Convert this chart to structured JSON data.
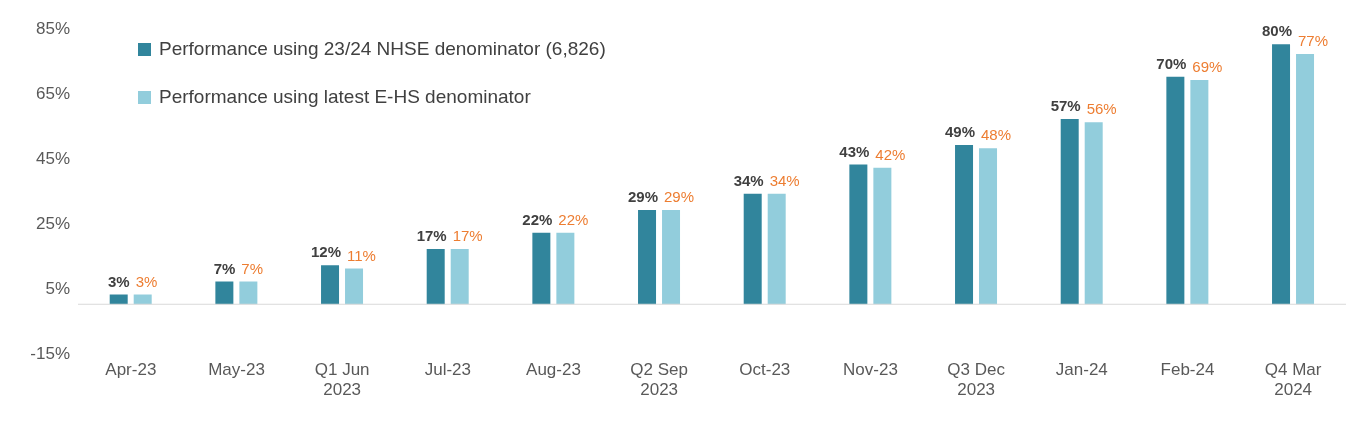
{
  "chart_data": {
    "type": "bar",
    "categories": [
      "Apr-23",
      "May-23",
      "Q1 Jun\n2023",
      "Jul-23",
      "Aug-23",
      "Q2 Sep\n2023",
      "Oct-23",
      "Nov-23",
      "Q3 Dec\n2023",
      "Jan-24",
      "Feb-24",
      "Q4 Mar\n2024"
    ],
    "series": [
      {
        "name": "Performance using 23/24 NHSE denominator (6,826)",
        "color": "#31859c",
        "values": [
          3,
          7,
          12,
          17,
          22,
          29,
          34,
          43,
          49,
          57,
          70,
          80
        ],
        "value_labels": [
          "3%",
          "7%",
          "12%",
          "17%",
          "22%",
          "29%",
          "34%",
          "43%",
          "49%",
          "57%",
          "70%",
          "80%"
        ]
      },
      {
        "name": "Performance using latest E-HS denominator",
        "color": "#92cddc",
        "values": [
          3,
          7,
          11,
          17,
          22,
          29,
          34,
          42,
          48,
          56,
          69,
          77
        ],
        "value_labels": [
          "3%",
          "7%",
          "11%",
          "17%",
          "22%",
          "29%",
          "34%",
          "42%",
          "48%",
          "56%",
          "69%",
          "77%"
        ]
      }
    ],
    "ylim": [
      -15,
      85
    ],
    "yticks": [
      {
        "value": -15,
        "label": "-15%"
      },
      {
        "value": 5,
        "label": "5%"
      },
      {
        "value": 25,
        "label": "25%"
      },
      {
        "value": 45,
        "label": "45%"
      },
      {
        "value": 65,
        "label": "65%"
      },
      {
        "value": 85,
        "label": "85%"
      }
    ],
    "grid": false,
    "legend": "top left"
  }
}
